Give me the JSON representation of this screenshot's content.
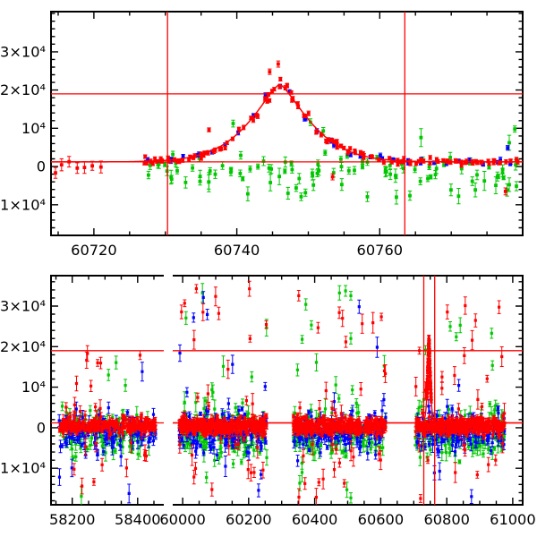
{
  "figure": {
    "background": "#ffffff",
    "colors": {
      "red": "#ff0000",
      "green": "#00c800",
      "blue": "#0000ff",
      "axis": "#000000",
      "annotation": "#ff0000",
      "text": "#000000"
    }
  },
  "chart_data": [
    {
      "id": "top_zoom",
      "type": "scatter",
      "title": "",
      "xlabel": "",
      "ylabel": "",
      "grid": false,
      "legend": "none",
      "x_range": [
        60714,
        60780
      ],
      "y_range": [
        -18000,
        40500
      ],
      "x_ticks": [
        {
          "v": 60720,
          "label": "60720"
        },
        {
          "v": 60740,
          "label": "60740"
        },
        {
          "v": 60760,
          "label": "60760"
        }
      ],
      "x_minor_step": 5,
      "y_ticks": [
        {
          "v": -10000,
          "label": "-1×10⁴"
        },
        {
          "v": 0,
          "label": "0"
        },
        {
          "v": 10000,
          "label": "10⁴"
        },
        {
          "v": 20000,
          "label": "2×10⁴"
        },
        {
          "v": 30000,
          "label": "3×10⁴"
        }
      ],
      "y_minor_step": 2000,
      "hlines": [
        {
          "y": 1200,
          "name": "baseline-line"
        },
        {
          "y": 19000,
          "name": "threshold-line"
        }
      ],
      "vlines": [
        {
          "x": 60730.3,
          "name": "window-start-line"
        },
        {
          "x": 60763.5,
          "name": "window-end-line"
        }
      ],
      "model_curve": {
        "t0": 60746,
        "baseline": 1200,
        "amplitude": 20300,
        "shape_exp": 1.35,
        "shape_tau": 10.85
      },
      "marker_size": 3.8,
      "cap_half_width": 2.2,
      "series": [
        {
          "name": "green",
          "color": "green",
          "gen": {
            "t_start": 60727.6,
            "t_end": 60779.4,
            "night_step": 1.0,
            "pts_min": 1,
            "pts_max": 3,
            "jitter": 0.5,
            "base": "flat",
            "mean": -700,
            "sigma": 1600,
            "neg_out_p": 0.16,
            "neg_out_lo": -8200,
            "neg_out_hi": -1800,
            "pos_out_p": 0.04,
            "pos_out_lo": 6000,
            "pos_out_hi": 12500,
            "err_lo": 500,
            "err_hi": 1400,
            "seed": 11
          }
        },
        {
          "name": "blue",
          "color": "blue",
          "gen": {
            "t_start": 60727.2,
            "t_end": 60779.2,
            "night_step": 1.9,
            "pts_min": 1,
            "pts_max": 2,
            "jitter": 0.5,
            "base": "model",
            "sigma": 430,
            "amp_jitter": 0.04,
            "err_lo": 300,
            "err_hi": 700,
            "seed": 22
          }
        },
        {
          "name": "red_pre_gap",
          "color": "red",
          "gen": {
            "t_start": 60714.4,
            "t_end": 60721.2,
            "night_step": 0.95,
            "pts_min": 1,
            "pts_max": 1,
            "jitter": 0.3,
            "base": "flat",
            "mean": 100,
            "sigma": 650,
            "err_lo": 1100,
            "err_hi": 1600,
            "seed": 33
          }
        },
        {
          "name": "red",
          "color": "red",
          "gen": {
            "t_start": 60727.0,
            "t_end": 60779.6,
            "night_step": 0.8,
            "pts_min": 1,
            "pts_max": 3,
            "jitter": 0.45,
            "base": "model",
            "sigma": 420,
            "amp_jitter": 0.05,
            "err_lo": 280,
            "err_hi": 600,
            "seed": 44
          }
        }
      ],
      "extra_points": [
        {
          "t": 60745.8,
          "y": 26800,
          "err": 800,
          "color": "red"
        },
        {
          "t": 60744.6,
          "y": 24800,
          "err": 700,
          "color": "red"
        },
        {
          "t": 60736.1,
          "y": 9600,
          "err": 500,
          "color": "red"
        },
        {
          "t": 60777.6,
          "y": -6500,
          "err": 900,
          "color": "red"
        },
        {
          "t": 60753.4,
          "y": -2700,
          "err": 800,
          "color": "red"
        },
        {
          "t": 60777.9,
          "y": 4900,
          "err": 600,
          "color": "blue"
        },
        {
          "t": 60778.9,
          "y": 9800,
          "err": 800,
          "color": "green"
        },
        {
          "t": 60750.3,
          "y": 11600,
          "err": 900,
          "color": "green"
        },
        {
          "t": 60752.1,
          "y": 9300,
          "err": 900,
          "color": "green"
        },
        {
          "t": 60749.0,
          "y": -7900,
          "err": 1000,
          "color": "green"
        },
        {
          "t": 60748.3,
          "y": -5600,
          "err": 900,
          "color": "green"
        }
      ]
    },
    {
      "id": "bottom_full",
      "type": "scatter",
      "title": "",
      "xlabel": "",
      "ylabel": "",
      "grid": false,
      "legend": "none",
      "segments": [
        {
          "x_range": [
            58135,
            58480
          ],
          "x_ticks": [
            {
              "v": 58200,
              "label": "58200"
            },
            {
              "v": 58400,
              "label": "58400"
            }
          ]
        },
        {
          "x_range": [
            59970,
            61030
          ],
          "x_ticks": [
            {
              "v": 60000,
              "label": "60000"
            },
            {
              "v": 60200,
              "label": "60200"
            },
            {
              "v": 60400,
              "label": "60400"
            },
            {
              "v": 60600,
              "label": "60600"
            },
            {
              "v": 60800,
              "label": "60800"
            },
            {
              "v": 61000,
              "label": "61000"
            }
          ]
        }
      ],
      "x_minor_step": 50,
      "y_range": [
        -19000,
        37500
      ],
      "y_ticks": [
        {
          "v": -10000,
          "label": "-1×10⁴"
        },
        {
          "v": 0,
          "label": "0"
        },
        {
          "v": 10000,
          "label": "10⁴"
        },
        {
          "v": 20000,
          "label": "2×10⁴"
        },
        {
          "v": 30000,
          "label": "3×10⁴"
        }
      ],
      "y_minor_step": 2000,
      "hlines": [
        {
          "y": 1200,
          "name": "baseline-line"
        },
        {
          "y": 19000,
          "name": "threshold-line"
        }
      ],
      "vlines": [
        {
          "x": 60730.3,
          "name": "window-start-line"
        },
        {
          "x": 60763.5,
          "name": "window-end-line"
        }
      ],
      "model_curve": {
        "t0": 60746,
        "baseline": 1200,
        "amplitude": 20300,
        "shape_exp": 1.35,
        "shape_tau": 10.85
      },
      "marker_size": 3.2,
      "cap_half_width": 2.0,
      "dists": {
        "green": {
          "mean": -1400,
          "sigma": 2600,
          "out_p": 0.1,
          "err_lo": 400,
          "err_hi": 2200
        },
        "blue": {
          "mean": -1100,
          "sigma": 2100,
          "out_p": 0.06,
          "err_lo": 350,
          "err_hi": 1800
        },
        "red": {
          "mean": 450,
          "sigma": 950,
          "out_p": 0.075,
          "err_lo": 250,
          "err_hi": 1200
        }
      },
      "clusters": [
        {
          "range": [
            58160,
            58455
          ],
          "counts": {
            "red": 260,
            "blue": 130,
            "green": 130
          },
          "out_hi": 19500,
          "out_lo": -17500,
          "seed": 101
        },
        {
          "range": [
            59990,
            60255
          ],
          "counts": {
            "red": 330,
            "blue": 160,
            "green": 160
          },
          "out_hi": 35500,
          "out_lo": -17500,
          "seed": 102
        },
        {
          "range": [
            60335,
            60615
          ],
          "counts": {
            "red": 330,
            "blue": 150,
            "green": 150
          },
          "out_hi": 34000,
          "out_lo": -17500,
          "seed": 103
        },
        {
          "range": [
            60705,
            60975
          ],
          "counts": {
            "red": 330,
            "blue": 150,
            "green": 150
          },
          "out_hi": 30500,
          "out_lo": -17500,
          "seed": 104
        }
      ],
      "event_points": {
        "t_lo": 60739.5,
        "t_hi": 60753.0,
        "step": 0.18,
        "sigma": 450,
        "err": 400,
        "seed": 105
      }
    }
  ]
}
